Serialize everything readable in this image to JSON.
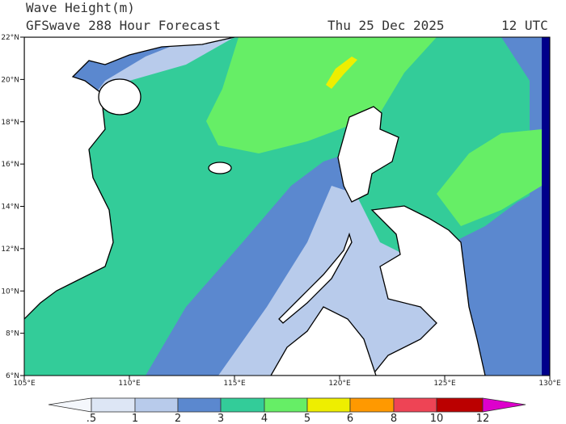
{
  "header": {
    "title": "Wave Height(m)",
    "subtitle": "GFSwave 288 Hour Forecast",
    "date": "Thu 25 Dec 2025",
    "time": "12 UTC"
  },
  "map": {
    "lat_labels": [
      "22°N",
      "20°N",
      "18°N",
      "16°N",
      "14°N",
      "12°N",
      "10°N",
      "8°N",
      "6°N"
    ],
    "lon_labels": [
      "105°E",
      "110°E",
      "115°E",
      "120°E",
      "125°E",
      "130°E"
    ]
  },
  "colorbar": {
    "labels": [
      ".5",
      "1",
      "2",
      "3",
      "4",
      "5",
      "6",
      "8",
      "10",
      "12"
    ]
  }
}
